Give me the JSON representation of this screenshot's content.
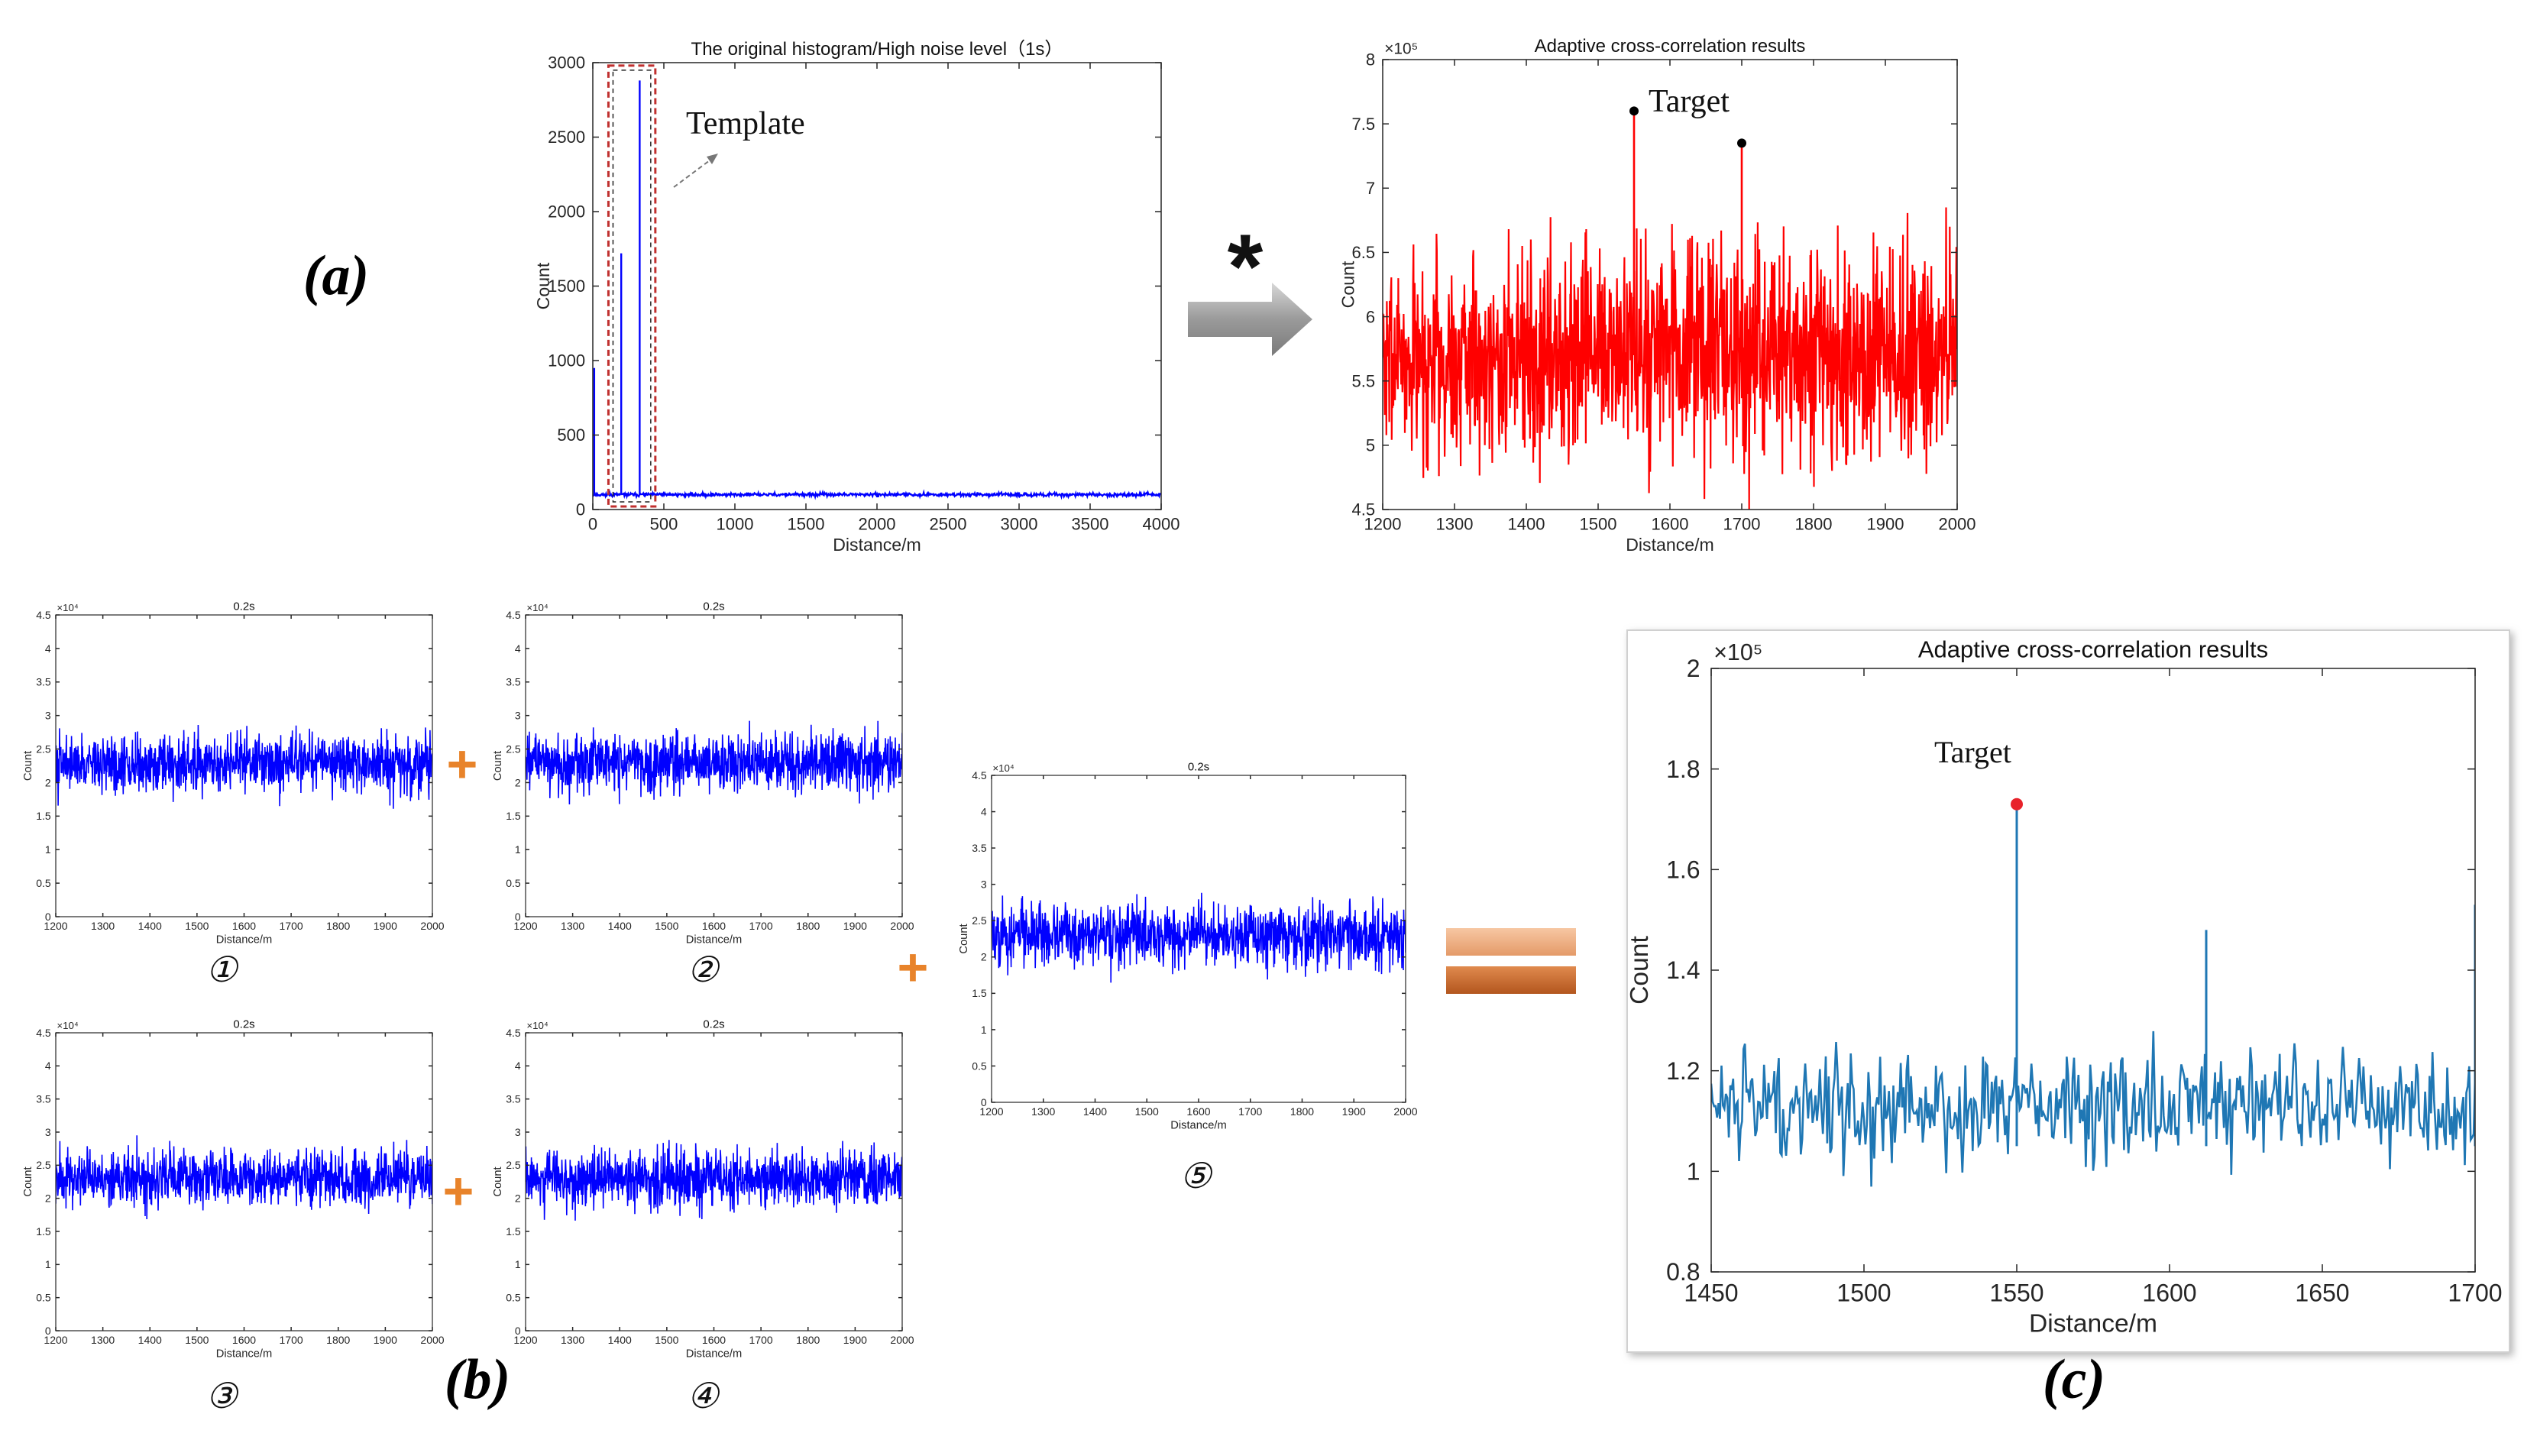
{
  "panel_labels": {
    "a": "(a)",
    "b": "(b)",
    "c": "(c)"
  },
  "operators": {
    "convolve": "*",
    "plus": "+",
    "equals": "="
  },
  "sub_labels": [
    "①",
    "②",
    "③",
    "④",
    "⑤"
  ],
  "colors": {
    "blue": "#0000ff",
    "red": "#ff0000",
    "steel": "#1f77b4",
    "orange": "#e8832a",
    "arrow": "#9a9a9a",
    "frame_shadow": "#bdbdbd"
  },
  "chart_data": [
    {
      "id": "hist",
      "type": "line",
      "title": "The original histogram/High noise level（1s）",
      "xlabel": "Distance/m",
      "ylabel": "Count",
      "xlim": [
        0,
        4000
      ],
      "ylim": [
        0,
        3000
      ],
      "xticks": [
        0,
        500,
        1000,
        1500,
        2000,
        2500,
        3000,
        3500,
        4000
      ],
      "yticks": [
        0,
        500,
        1000,
        1500,
        2000,
        2500,
        3000
      ],
      "spikes": [
        {
          "x": 10,
          "y": 950
        },
        {
          "x": 200,
          "y": 1720
        },
        {
          "x": 330,
          "y": 2880
        }
      ],
      "baseline": 100,
      "annotation": "Template",
      "template_range": [
        110,
        440
      ]
    },
    {
      "id": "xcorr_top",
      "type": "line",
      "title": "Adaptive cross-correlation results",
      "xlabel": "Distance/m",
      "ylabel": "Count",
      "exponent": "×10⁵",
      "xlim": [
        1200,
        2000
      ],
      "ylim": [
        4.5,
        8
      ],
      "xticks": [
        1200,
        1300,
        1400,
        1500,
        1600,
        1700,
        1800,
        1900,
        2000
      ],
      "yticks": [
        4.5,
        5,
        5.5,
        6,
        6.5,
        7,
        7.5,
        8
      ],
      "noise_mean": 5.7,
      "peaks": [
        {
          "x": 1550,
          "y": 7.6
        },
        {
          "x": 1700,
          "y": 7.35
        }
      ],
      "annotation": "Target"
    },
    {
      "id": "frame",
      "type": "line",
      "title": "0.2s",
      "xlabel": "Distance/m",
      "ylabel": "Count",
      "exponent": "×10⁴",
      "xlim": [
        1200,
        2000
      ],
      "ylim": [
        0,
        4.5
      ],
      "xticks": [
        1200,
        1300,
        1400,
        1500,
        1600,
        1700,
        1800,
        1900,
        2000
      ],
      "yticks": [
        0,
        0.5,
        1,
        1.5,
        2,
        2.5,
        3,
        3.5,
        4,
        4.5
      ],
      "noise_mean": 2.3,
      "frames": 5
    },
    {
      "id": "xcorr_result",
      "type": "line",
      "title": "Adaptive cross-correlation results",
      "xlabel": "Distance/m",
      "ylabel": "Count",
      "exponent": "×10⁵",
      "xlim": [
        1450,
        1700
      ],
      "ylim": [
        0.8,
        2
      ],
      "xticks": [
        1450,
        1500,
        1550,
        1600,
        1650,
        1700
      ],
      "yticks": [
        0.8,
        1,
        1.2,
        1.4,
        1.6,
        1.8,
        2
      ],
      "noise_mean": 1.13,
      "peaks": [
        {
          "x": 1550,
          "y": 1.73
        },
        {
          "x": 1612,
          "y": 1.48
        },
        {
          "x": 1700,
          "y": 1.53
        }
      ],
      "annotation": "Target"
    }
  ]
}
